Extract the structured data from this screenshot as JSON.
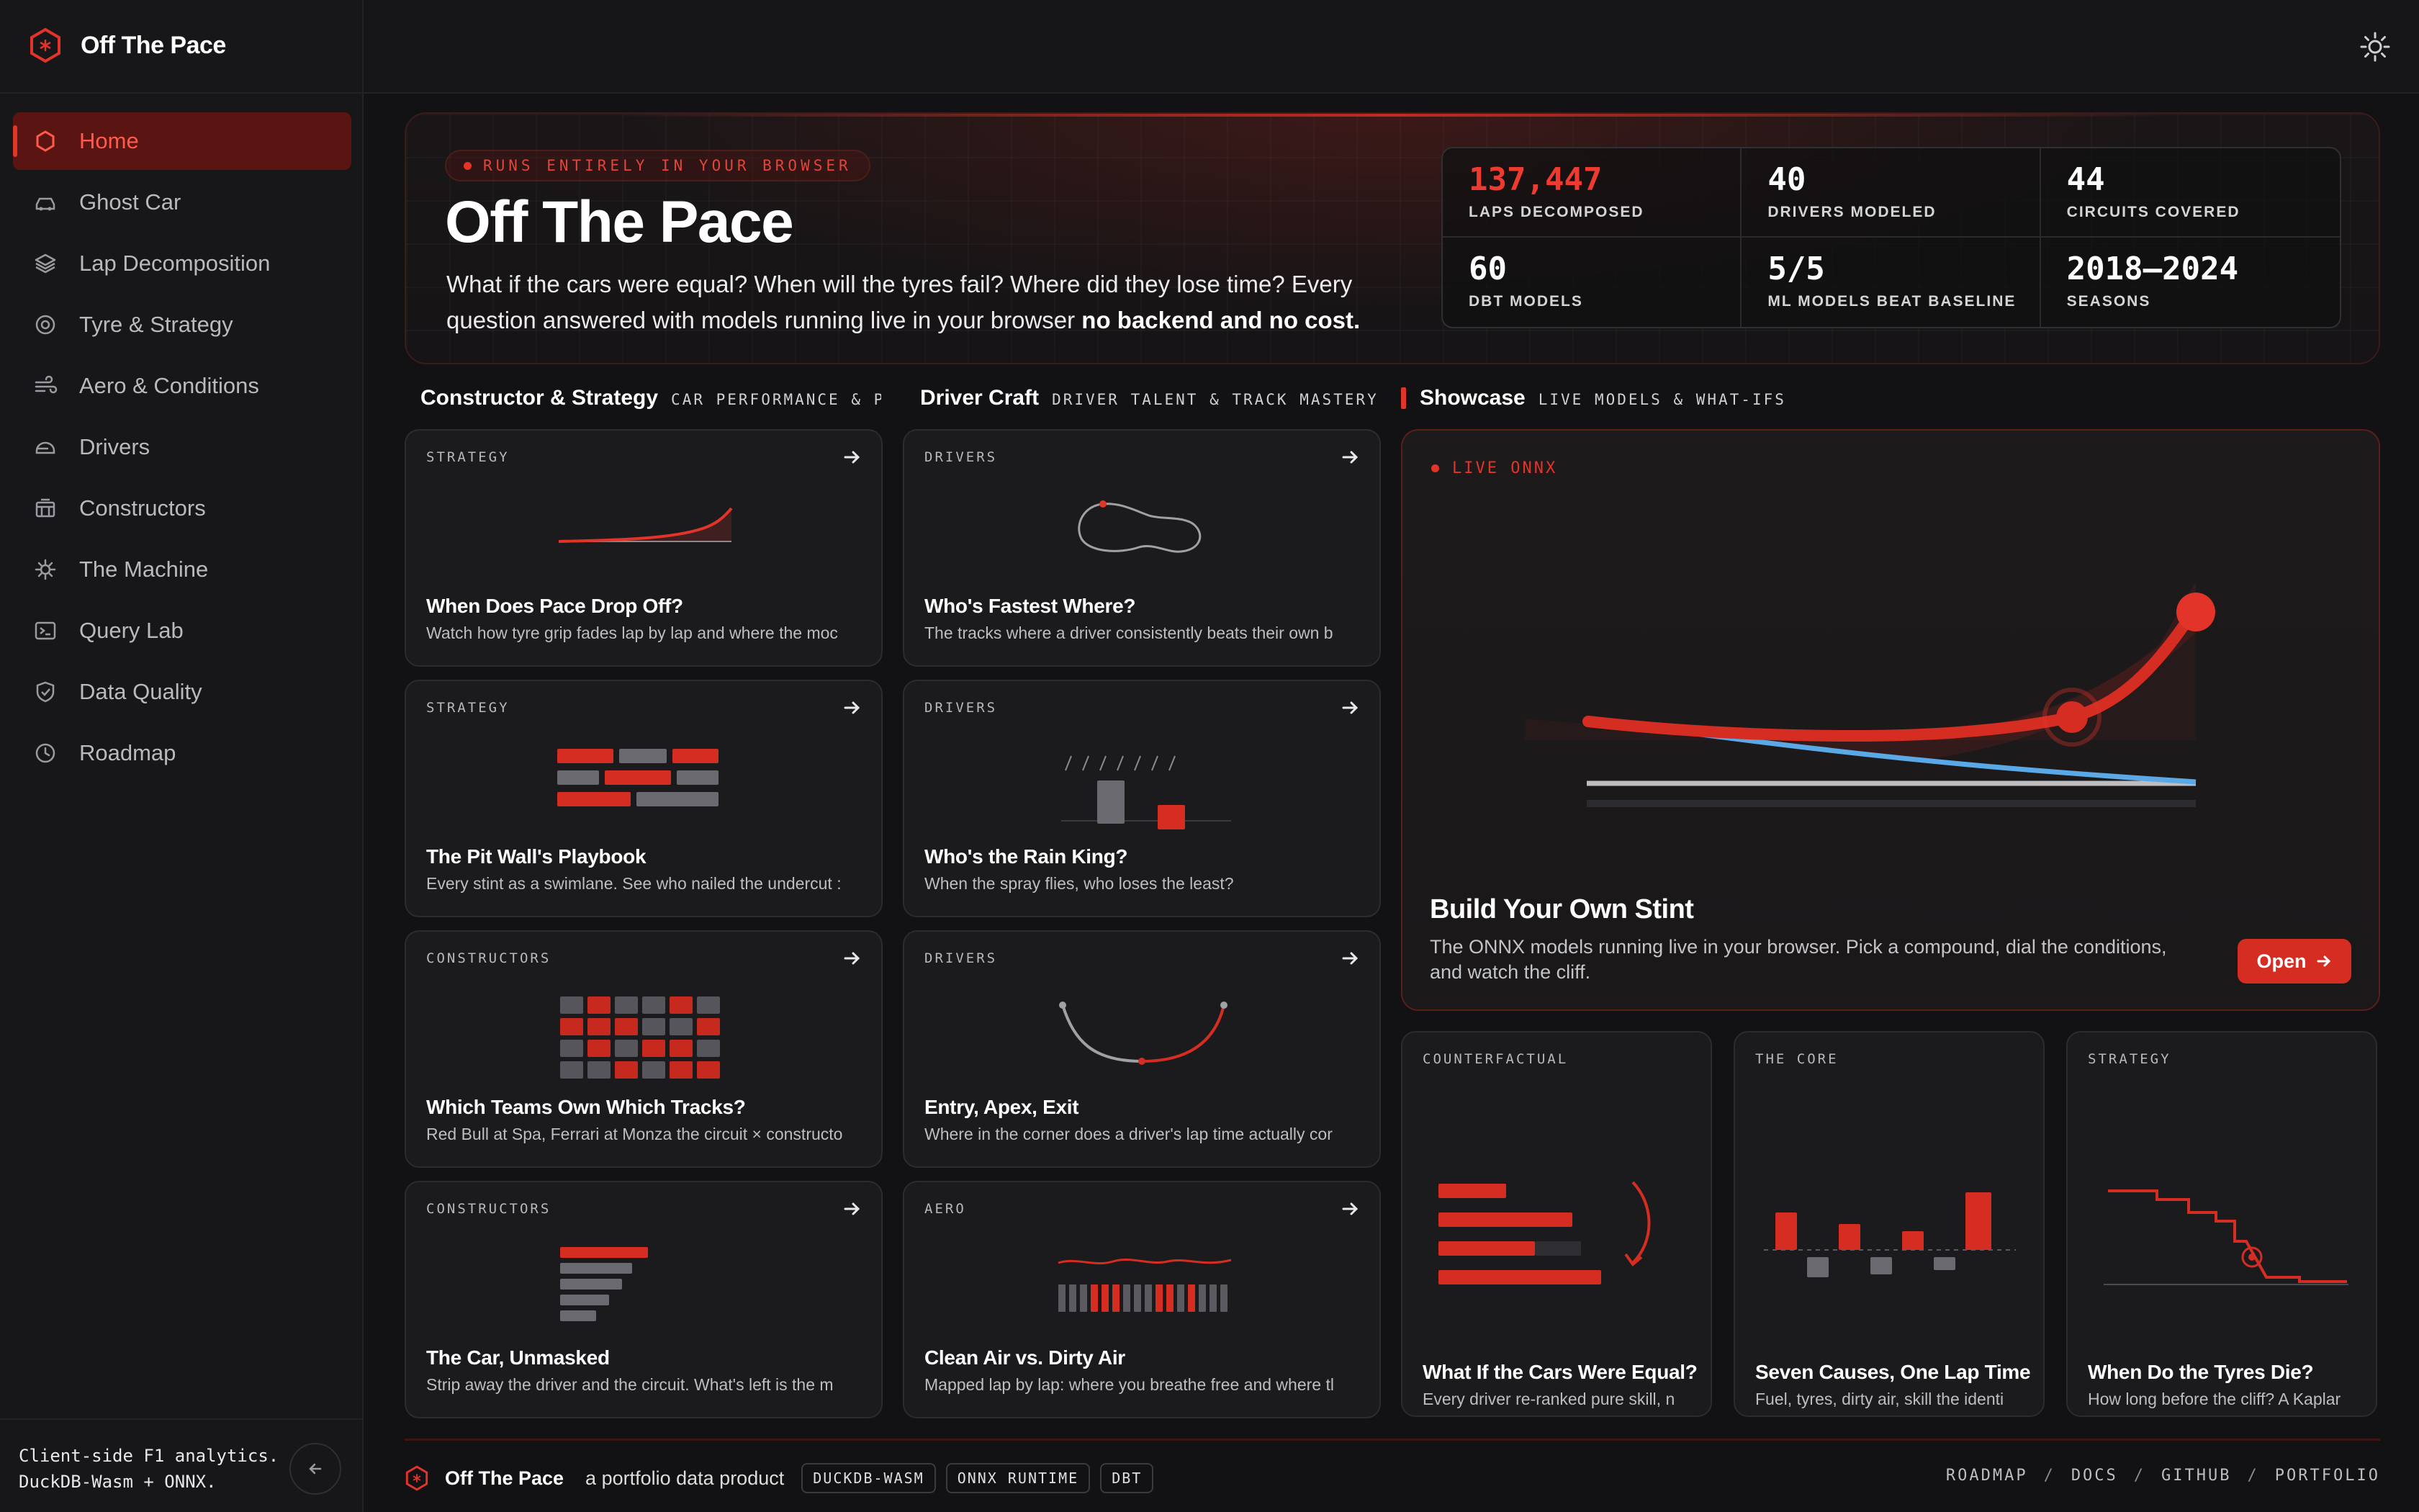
{
  "brand": {
    "title": "Off The Pace"
  },
  "nav": [
    {
      "label": "Home",
      "icon": "hexagon-icon",
      "active": true
    },
    {
      "label": "Ghost Car",
      "icon": "car-icon"
    },
    {
      "label": "Lap Decomposition",
      "icon": "layers-icon"
    },
    {
      "label": "Tyre & Strategy",
      "icon": "tyre-icon"
    },
    {
      "label": "Aero & Conditions",
      "icon": "wind-icon"
    },
    {
      "label": "Drivers",
      "icon": "helmet-icon"
    },
    {
      "label": "Constructors",
      "icon": "garage-icon"
    },
    {
      "label": "The Machine",
      "icon": "cog-icon"
    },
    {
      "label": "Query Lab",
      "icon": "terminal-icon"
    },
    {
      "label": "Data Quality",
      "icon": "shield-icon"
    },
    {
      "label": "Roadmap",
      "icon": "clock-icon"
    }
  ],
  "sidebar_footer": {
    "line1": "Client-side F1 analytics.",
    "line2": "DuckDB-Wasm + ONNX."
  },
  "hero": {
    "badge": "RUNS ENTIRELY IN YOUR BROWSER",
    "title": "Off The Pace",
    "desc_main": "What if the cars were equal? When will the tyres fail? Where did they lose time? Every question answered with models running live in your browser",
    "desc_bold": "no backend and no cost."
  },
  "stats": [
    {
      "value": "137,447",
      "label": "LAPS DECOMPOSED"
    },
    {
      "value": "40",
      "label": "DRIVERS MODELED"
    },
    {
      "value": "44",
      "label": "CIRCUITS COVERED"
    },
    {
      "value": "60",
      "label": "DBT MODELS"
    },
    {
      "value": "5/5",
      "label": "ML MODELS BEAT BASELINE"
    },
    {
      "value": "2018–2024",
      "label": "SEASONS"
    }
  ],
  "columns": {
    "constructor": {
      "title": "Constructor & Strategy",
      "sub": "CAR PERFORMANCE & PI…"
    },
    "driver": {
      "title": "Driver Craft",
      "sub": "DRIVER TALENT & TRACK MASTERY"
    },
    "showcase": {
      "title": "Showcase",
      "sub": "LIVE MODELS & WHAT-IFS"
    }
  },
  "cards_left": [
    {
      "tag": "STRATEGY",
      "title": "When Does Pace Drop Off?",
      "desc": "Watch how tyre grip fades lap by lap and where the moc"
    },
    {
      "tag": "STRATEGY",
      "title": "The Pit Wall's Playbook",
      "desc": "Every stint as a swimlane. See who nailed the undercut :"
    },
    {
      "tag": "CONSTRUCTORS",
      "title": "Which Teams Own Which Tracks?",
      "desc": "Red Bull at Spa, Ferrari at Monza the circuit × constructo"
    },
    {
      "tag": "CONSTRUCTORS",
      "title": "The Car, Unmasked",
      "desc": "Strip away the driver and the circuit. What's left is the m"
    }
  ],
  "cards_mid": [
    {
      "tag": "DRIVERS",
      "title": "Who's Fastest Where?",
      "desc": "The tracks where a driver consistently beats their own b"
    },
    {
      "tag": "DRIVERS",
      "title": "Who's the Rain King?",
      "desc": "When the spray flies, who loses the least?"
    },
    {
      "tag": "DRIVERS",
      "title": "Entry, Apex, Exit",
      "desc": "Where in the corner does a driver's lap time actually cor"
    },
    {
      "tag": "AERO",
      "title": "Clean Air vs. Dirty Air",
      "desc": "Mapped lap by lap: where you breathe free and where tl"
    }
  ],
  "showcase": {
    "live": "LIVE ONNX",
    "title": "Build Your Own Stint",
    "desc": "The ONNX models running live in your browser. Pick a compound, dial the conditions, and watch the cliff.",
    "button": "Open"
  },
  "mini_cards": [
    {
      "tag": "COUNTERFACTUAL",
      "title": "What If the Cars Were Equal?",
      "desc": "Every driver re-ranked pure skill, n"
    },
    {
      "tag": "THE CORE",
      "title": "Seven Causes, One Lap Time",
      "desc": "Fuel, tyres, dirty air, skill the identi"
    },
    {
      "tag": "STRATEGY",
      "title": "When Do the Tyres Die?",
      "desc": "How long before the cliff? A Kaplar"
    }
  ],
  "footer": {
    "brand": "Off The Pace",
    "sub": "a portfolio data product",
    "chips": [
      "DUCKDB-WASM",
      "ONNX RUNTIME",
      "DBT"
    ],
    "links": [
      "ROADMAP",
      "DOCS",
      "GITHUB",
      "PORTFOLIO"
    ]
  },
  "colors": {
    "accent": "#e3342a",
    "background": "#121214",
    "card": "#1b1b1e",
    "blue": "#5aa9e6"
  }
}
